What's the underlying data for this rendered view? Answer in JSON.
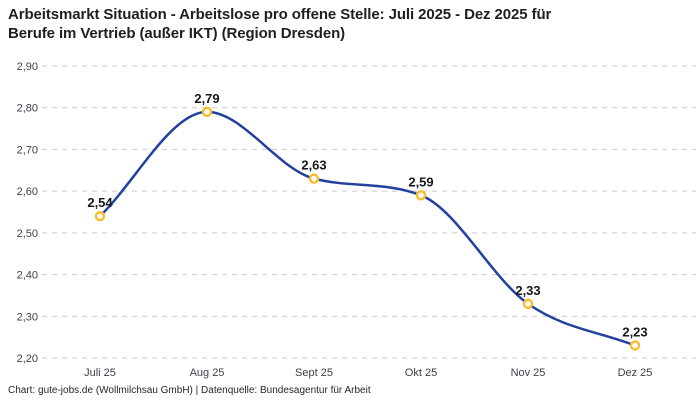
{
  "header": {
    "title": "Arbeitsmarkt Situation - Arbeitslose pro offene Stelle: Juli 2025 - Dez 2025 für\nBerufe im Vertrieb (außer IKT) (Region Dresden)"
  },
  "chart_data": {
    "type": "line",
    "title": "Arbeitsmarkt Situation - Arbeitslose pro offene Stelle: Juli 2025 - Dez 2025 für Berufe im Vertrieb (außer IKT) (Region Dresden)",
    "categories": [
      "Juli 25",
      "Aug 25",
      "Sept 25",
      "Okt 25",
      "Nov 25",
      "Dez 25"
    ],
    "values": [
      2.54,
      2.79,
      2.63,
      2.59,
      2.33,
      2.23
    ],
    "value_labels": [
      "2,54",
      "2,79",
      "2,63",
      "2,59",
      "2,33",
      "2,23"
    ],
    "ylim": [
      2.2,
      2.9
    ],
    "yticks": [
      2.2,
      2.3,
      2.4,
      2.5,
      2.6,
      2.7,
      2.8,
      2.9
    ],
    "ytick_labels": [
      "2,20",
      "2,30",
      "2,40",
      "2,50",
      "2,60",
      "2,70",
      "2,80",
      "2,90"
    ],
    "xlabel": "",
    "ylabel": "",
    "grid": "horizontal-dashed",
    "legend": "none",
    "curve": "smooth-monotone",
    "theme": {
      "line_color": "#23409f",
      "marker_stroke": "#f9bc2d",
      "marker_fill": "#ffffff",
      "grid_color": "#cccccc",
      "axis_text_color": "#3c414b",
      "point_label_color": "#15181e",
      "title_color": "#1d1f24",
      "background": "#ffffff"
    }
  },
  "footer": {
    "credit": "Chart: gute-jobs.de (Wollmilchsau GmbH) | Datenquelle: Bundesagentur für Arbeit"
  }
}
